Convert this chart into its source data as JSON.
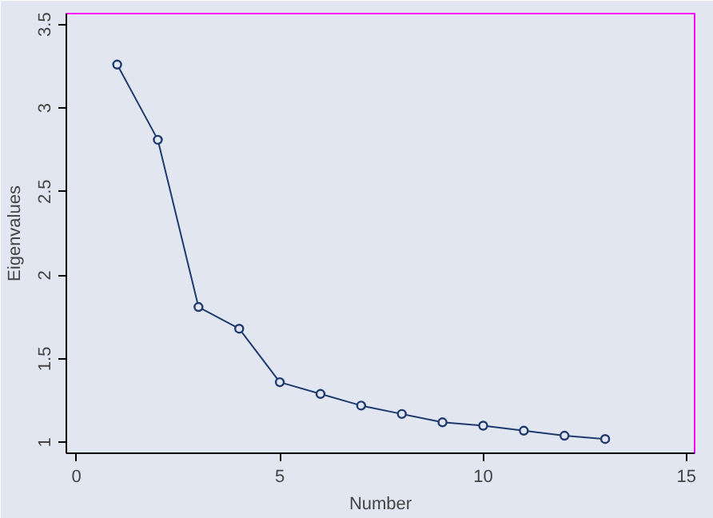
{
  "chart_data": {
    "type": "line",
    "xlabel": "Number",
    "ylabel": "Eigenvalues",
    "x": [
      1,
      2,
      3,
      4,
      5,
      6,
      7,
      8,
      9,
      10,
      11,
      12,
      13
    ],
    "series": [
      {
        "color": "#1f3a6e",
        "values": [
          3.26,
          2.81,
          1.81,
          1.68,
          1.36,
          1.29,
          1.22,
          1.17,
          1.12,
          1.1,
          1.07,
          1.04,
          1.02
        ]
      }
    ],
    "xlim": [
      -0.25,
      15.2
    ],
    "ylim": [
      0.935,
      3.565
    ],
    "xticks": [
      0,
      5,
      10,
      15
    ],
    "yticks": [
      1,
      1.5,
      2,
      2.5,
      3,
      3.5
    ],
    "grid": false,
    "marker": "circle",
    "line_style": "solid"
  }
}
